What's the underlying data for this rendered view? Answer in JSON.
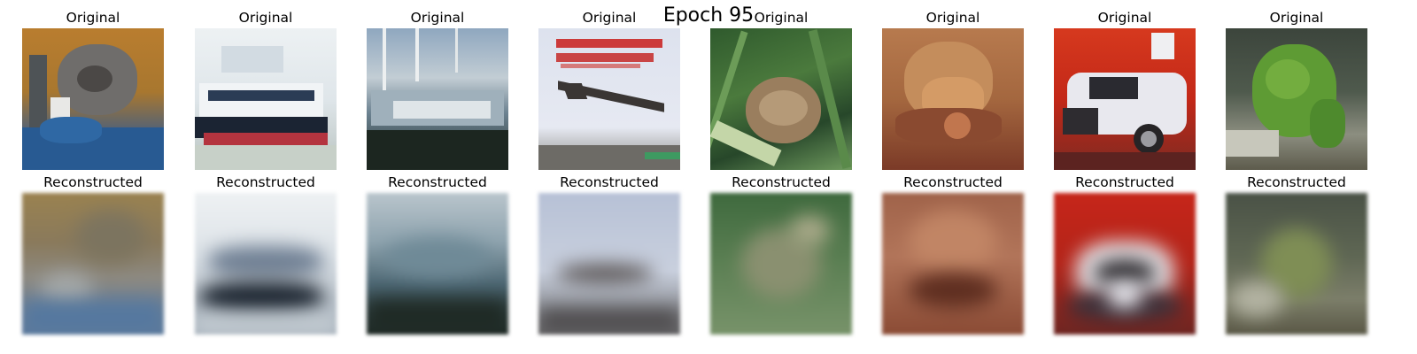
{
  "figure": {
    "title": "Epoch 95"
  },
  "original_row": {
    "labels": [
      "Original",
      "Original",
      "Original",
      "Original",
      "Original",
      "Original",
      "Original",
      "Original"
    ]
  },
  "reconstructed_row": {
    "labels": [
      "Reconstructed",
      "Reconstructed",
      "Reconstructed",
      "Reconstructed",
      "Reconstructed",
      "Reconstructed",
      "Reconstructed",
      "Reconstructed"
    ]
  },
  "images": [
    {
      "content": "cat",
      "dominant_colors": [
        "#b47a2e",
        "#6e6a66",
        "#2f5f93"
      ]
    },
    {
      "content": "ship",
      "dominant_colors": [
        "#d9e2e8",
        "#1c2a3a",
        "#b8333e"
      ]
    },
    {
      "content": "ship",
      "dominant_colors": [
        "#b9c6cf",
        "#4f6b7c",
        "#1d2a24"
      ]
    },
    {
      "content": "airplane",
      "dominant_colors": [
        "#d6dbe8",
        "#c83b3b",
        "#3a3634"
      ]
    },
    {
      "content": "frog",
      "dominant_colors": [
        "#3d6a34",
        "#9b8060",
        "#7fa062"
      ]
    },
    {
      "content": "frog",
      "dominant_colors": [
        "#a86a45",
        "#c48a5b",
        "#7a3a28"
      ]
    },
    {
      "content": "automobile",
      "dominant_colors": [
        "#c9281a",
        "#e9e9ee",
        "#2a2628"
      ]
    },
    {
      "content": "frog",
      "dominant_colors": [
        "#3f4a3f",
        "#5e9a34",
        "#8c8f80"
      ]
    }
  ]
}
